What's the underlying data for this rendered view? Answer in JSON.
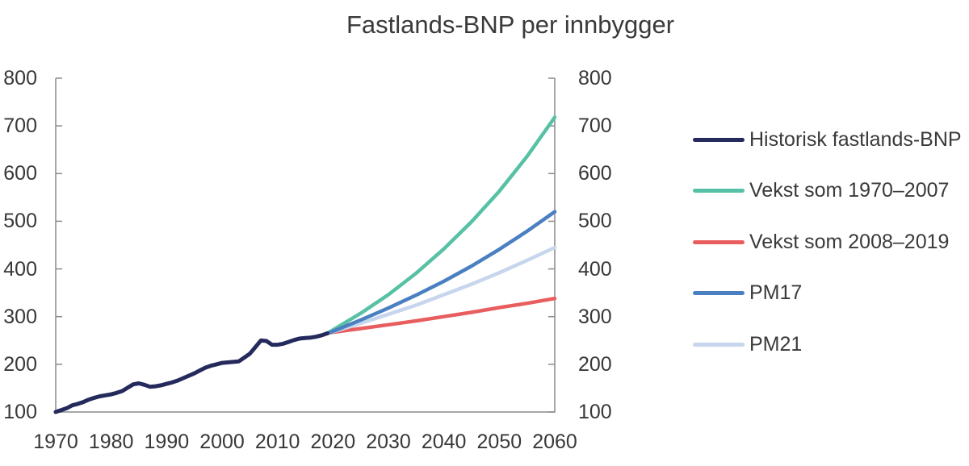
{
  "chart_data": {
    "type": "line",
    "title": "Fastlands-BNP per innbygger",
    "xlabel": "",
    "ylabel": "",
    "xlim": [
      1970,
      2060
    ],
    "ylim": [
      100,
      800
    ],
    "x_ticks": [
      1970,
      1980,
      1990,
      2000,
      2010,
      2020,
      2030,
      2040,
      2050,
      2060
    ],
    "y_ticks": [
      100,
      200,
      300,
      400,
      500,
      600,
      700,
      800
    ],
    "grid": false,
    "legend_position": "right",
    "axis_color": "#8a8a8a",
    "text_color": "#3a3a3a",
    "series": [
      {
        "id": "vekst-1970-2007",
        "name": "Vekst som 1970–2007",
        "color": "#57c1a5",
        "width": 4.5,
        "points": [
          [
            2019,
            265
          ],
          [
            2020,
            272
          ],
          [
            2025,
            307
          ],
          [
            2030,
            346
          ],
          [
            2035,
            391
          ],
          [
            2040,
            442
          ],
          [
            2045,
            499
          ],
          [
            2050,
            563
          ],
          [
            2055,
            636
          ],
          [
            2060,
            718
          ]
        ]
      },
      {
        "id": "vekst-2008-2019",
        "name": "Vekst som 2008–2019",
        "color": "#e85d5e",
        "width": 4.5,
        "points": [
          [
            2019,
            265
          ],
          [
            2020,
            267
          ],
          [
            2025,
            275
          ],
          [
            2030,
            283
          ],
          [
            2035,
            291
          ],
          [
            2040,
            300
          ],
          [
            2045,
            309
          ],
          [
            2050,
            319
          ],
          [
            2055,
            328
          ],
          [
            2060,
            338
          ]
        ]
      },
      {
        "id": "pm21",
        "name": "PM21",
        "color": "#c7d6ec",
        "width": 4.5,
        "points": [
          [
            2019,
            265
          ],
          [
            2020,
            268
          ],
          [
            2025,
            286
          ],
          [
            2030,
            305
          ],
          [
            2035,
            324
          ],
          [
            2040,
            346
          ],
          [
            2045,
            368
          ],
          [
            2050,
            392
          ],
          [
            2055,
            418
          ],
          [
            2060,
            445
          ]
        ]
      },
      {
        "id": "pm17",
        "name": "PM17",
        "color": "#4a80c2",
        "width": 4.5,
        "points": [
          [
            2019,
            265
          ],
          [
            2020,
            269
          ],
          [
            2025,
            293
          ],
          [
            2030,
            318
          ],
          [
            2035,
            345
          ],
          [
            2040,
            374
          ],
          [
            2045,
            406
          ],
          [
            2050,
            441
          ],
          [
            2055,
            479
          ],
          [
            2060,
            520
          ]
        ]
      },
      {
        "id": "historisk",
        "name": "Historisk fastlands-BNP",
        "color": "#252a5d",
        "width": 5,
        "points": [
          [
            1970,
            100
          ],
          [
            1971,
            104
          ],
          [
            1972,
            108
          ],
          [
            1973,
            114
          ],
          [
            1974,
            117
          ],
          [
            1975,
            121
          ],
          [
            1976,
            126
          ],
          [
            1977,
            130
          ],
          [
            1978,
            133
          ],
          [
            1979,
            135
          ],
          [
            1980,
            137
          ],
          [
            1981,
            140
          ],
          [
            1982,
            144
          ],
          [
            1983,
            151
          ],
          [
            1984,
            158
          ],
          [
            1985,
            160
          ],
          [
            1986,
            157
          ],
          [
            1987,
            153
          ],
          [
            1988,
            154
          ],
          [
            1989,
            156
          ],
          [
            1990,
            159
          ],
          [
            1991,
            162
          ],
          [
            1992,
            166
          ],
          [
            1993,
            171
          ],
          [
            1994,
            176
          ],
          [
            1995,
            181
          ],
          [
            1996,
            187
          ],
          [
            1997,
            193
          ],
          [
            1998,
            197
          ],
          [
            1999,
            200
          ],
          [
            2000,
            203
          ],
          [
            2001,
            204
          ],
          [
            2002,
            205
          ],
          [
            2003,
            206
          ],
          [
            2004,
            214
          ],
          [
            2005,
            222
          ],
          [
            2006,
            236
          ],
          [
            2007,
            250
          ],
          [
            2008,
            249
          ],
          [
            2009,
            241
          ],
          [
            2010,
            241
          ],
          [
            2011,
            243
          ],
          [
            2012,
            247
          ],
          [
            2013,
            251
          ],
          [
            2014,
            254
          ],
          [
            2015,
            255
          ],
          [
            2016,
            256
          ],
          [
            2017,
            258
          ],
          [
            2018,
            261
          ],
          [
            2019,
            265
          ]
        ]
      }
    ],
    "legend_order": [
      "historisk",
      "vekst-1970-2007",
      "vekst-2008-2019",
      "pm17",
      "pm21"
    ]
  }
}
